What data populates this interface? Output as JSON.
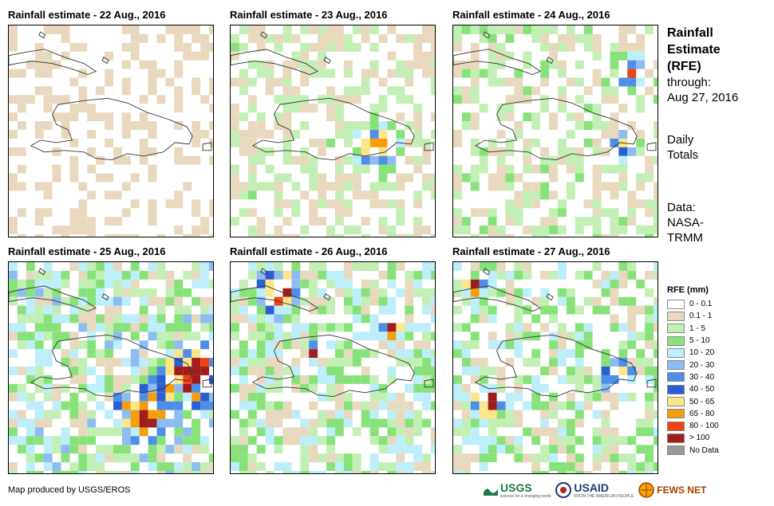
{
  "panels": [
    {
      "title": "Rainfall estimate - 22 Aug., 2016",
      "seed": 11,
      "intensity": 0.35,
      "hot": []
    },
    {
      "title": "Rainfall estimate - 23 Aug., 2016",
      "seed": 23,
      "intensity": 0.55,
      "hot": [
        [
          0.7,
          0.55,
          0.15
        ]
      ]
    },
    {
      "title": "Rainfall estimate - 24 Aug., 2016",
      "seed": 37,
      "intensity": 0.6,
      "hot": [
        [
          0.85,
          0.2,
          0.1
        ],
        [
          0.82,
          0.55,
          0.08
        ]
      ]
    },
    {
      "title": "Rainfall estimate - 25 Aug., 2016",
      "seed": 41,
      "intensity": 1.0,
      "hot": [
        [
          0.88,
          0.5,
          0.22
        ],
        [
          0.65,
          0.7,
          0.18
        ]
      ]
    },
    {
      "title": "Rainfall estimate - 26 Aug., 2016",
      "seed": 53,
      "intensity": 0.9,
      "hot": [
        [
          0.22,
          0.12,
          0.15
        ],
        [
          0.4,
          0.4,
          0.06
        ],
        [
          0.78,
          0.3,
          0.08
        ]
      ]
    },
    {
      "title": "Rainfall estimate - 27 Aug., 2016",
      "seed": 67,
      "intensity": 0.85,
      "hot": [
        [
          0.15,
          0.65,
          0.12
        ],
        [
          0.08,
          0.1,
          0.08
        ],
        [
          0.78,
          0.5,
          0.1
        ]
      ]
    }
  ],
  "side": {
    "title_lines": [
      "Rainfall",
      "Estimate",
      "(RFE)"
    ],
    "through_label": "through:",
    "through_date": "Aug 27, 2016",
    "totals_lines": [
      "Daily",
      "Totals"
    ],
    "data_lines": [
      "Data:",
      "NASA-",
      "TRMM"
    ]
  },
  "legend": {
    "title": "RFE (mm)",
    "items": [
      {
        "label": "0 - 0.1",
        "color": "#ffffff"
      },
      {
        "label": "0.1 - 1",
        "color": "#e8d9be"
      },
      {
        "label": "1 - 5",
        "color": "#c2efb4"
      },
      {
        "label": "5 - 10",
        "color": "#88e27a"
      },
      {
        "label": "10 - 20",
        "color": "#bdeefb"
      },
      {
        "label": "20 - 30",
        "color": "#8dbcf2"
      },
      {
        "label": "30 - 40",
        "color": "#4f8ee6"
      },
      {
        "label": "40 - 50",
        "color": "#2a5fd4"
      },
      {
        "label": "50 - 65",
        "color": "#fde68a"
      },
      {
        "label": "65 - 80",
        "color": "#f59e0b"
      },
      {
        "label": "80 - 100",
        "color": "#ef4410"
      },
      {
        "label": "> 100",
        "color": "#a01d1d"
      },
      {
        "label": "No Data",
        "color": "#999999"
      }
    ]
  },
  "credit": "Map produced by USGS/EROS",
  "logos": {
    "usgs": "USGS",
    "usgs_tag": "science for a changing world",
    "usaid": "USAID",
    "usaid_tag": "FROM THE AMERICAN PEOPLE",
    "fews": "FEWS NET"
  }
}
